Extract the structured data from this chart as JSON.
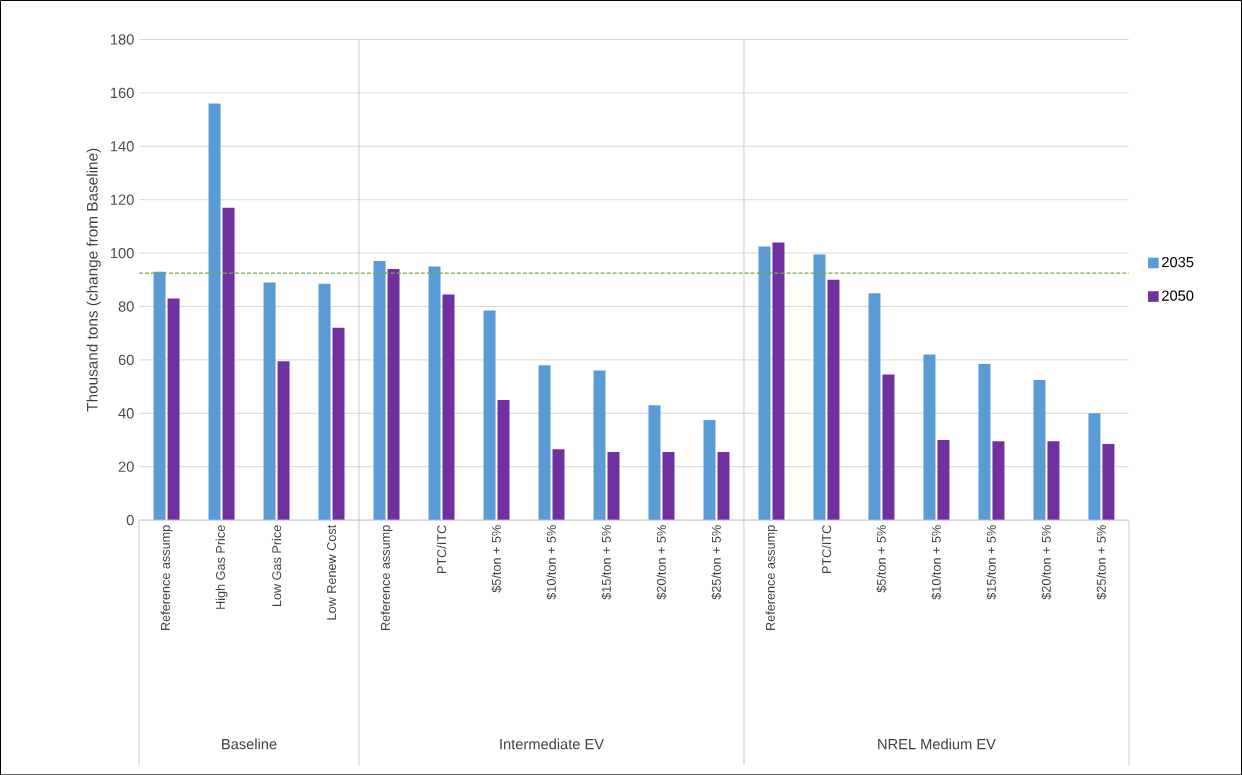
{
  "chart_data": {
    "type": "bar",
    "ylabel": "Thousand tons (change from Baseline)",
    "categories": [
      "Reference assump",
      "High Gas Price",
      "Low Gas Price",
      "Low Renew Cost",
      "Reference assump",
      "PTC/ITC",
      "$5/ton + 5%",
      "$10/ton + 5%",
      "$15/ton + 5%",
      "$20/ton + 5%",
      "$25/ton + 5%",
      "Reference assump",
      "PTC/ITC",
      "$5/ton + 5%",
      "$10/ton + 5%",
      "$15/ton + 5%",
      "$20/ton + 5%",
      "$25/ton + 5%"
    ],
    "series": [
      {
        "name": "2035",
        "color": "#5b9bd5",
        "values": [
          93,
          156,
          89,
          88.5,
          97,
          95,
          78.5,
          58,
          56,
          43,
          37.5,
          102.5,
          99.5,
          85,
          62,
          58.5,
          52.5,
          40
        ]
      },
      {
        "name": "2050",
        "color": "#7030a0",
        "values": [
          83,
          117,
          59.5,
          72,
          94,
          84.5,
          45,
          26.5,
          25.5,
          25.5,
          25.5,
          104,
          90,
          54.5,
          30,
          29.5,
          29.5,
          28.5
        ]
      }
    ],
    "ylim": [
      0,
      180
    ],
    "yticks": [
      0,
      20,
      40,
      60,
      80,
      100,
      120,
      140,
      160,
      180
    ],
    "grid": "y",
    "legend": "right",
    "ref_lines": [
      {
        "axis": "y",
        "value": 92.5,
        "color": "#70ad47",
        "line_style": "dashed"
      }
    ],
    "annotations": [
      "Baseline",
      "Intermediate EV",
      "NREL Medium EV"
    ]
  }
}
